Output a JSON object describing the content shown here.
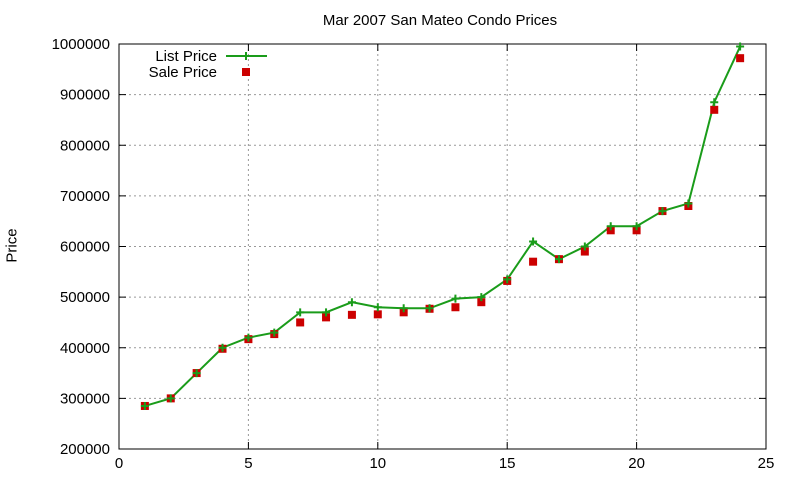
{
  "chart_data": {
    "type": "line",
    "title": "Mar 2007 San Mateo Condo Prices",
    "xlabel": "",
    "ylabel": "Price",
    "xlim": [
      0,
      25
    ],
    "ylim": [
      200000,
      1000000
    ],
    "x_ticks": [
      0,
      5,
      10,
      15,
      20,
      25
    ],
    "y_ticks": [
      200000,
      300000,
      400000,
      500000,
      600000,
      700000,
      800000,
      900000,
      1000000
    ],
    "grid": true,
    "legend_position": "top-left",
    "series": [
      {
        "name": "List Price",
        "style": "line+cross",
        "color": "#1a9c1a",
        "x": [
          1,
          2,
          3,
          4,
          5,
          6,
          7,
          8,
          9,
          10,
          11,
          12,
          13,
          14,
          15,
          16,
          17,
          18,
          19,
          20,
          21,
          22,
          23,
          24
        ],
        "values": [
          285000,
          300000,
          350000,
          400000,
          420000,
          430000,
          470000,
          470000,
          490000,
          480000,
          478000,
          478000,
          497000,
          500000,
          535000,
          610000,
          575000,
          600000,
          640000,
          640000,
          670000,
          685000,
          885000,
          995000
        ]
      },
      {
        "name": "Sale Price",
        "style": "square",
        "color": "#cc0000",
        "x": [
          1,
          2,
          3,
          4,
          5,
          6,
          7,
          8,
          9,
          10,
          11,
          12,
          13,
          14,
          15,
          16,
          17,
          18,
          19,
          20,
          21,
          22,
          23,
          24
        ],
        "values": [
          285000,
          300000,
          350000,
          398000,
          417000,
          427000,
          450000,
          460000,
          465000,
          466000,
          470000,
          477000,
          480000,
          490000,
          532000,
          570000,
          575000,
          590000,
          632000,
          632000,
          670000,
          680000,
          870000,
          972000
        ]
      }
    ]
  }
}
